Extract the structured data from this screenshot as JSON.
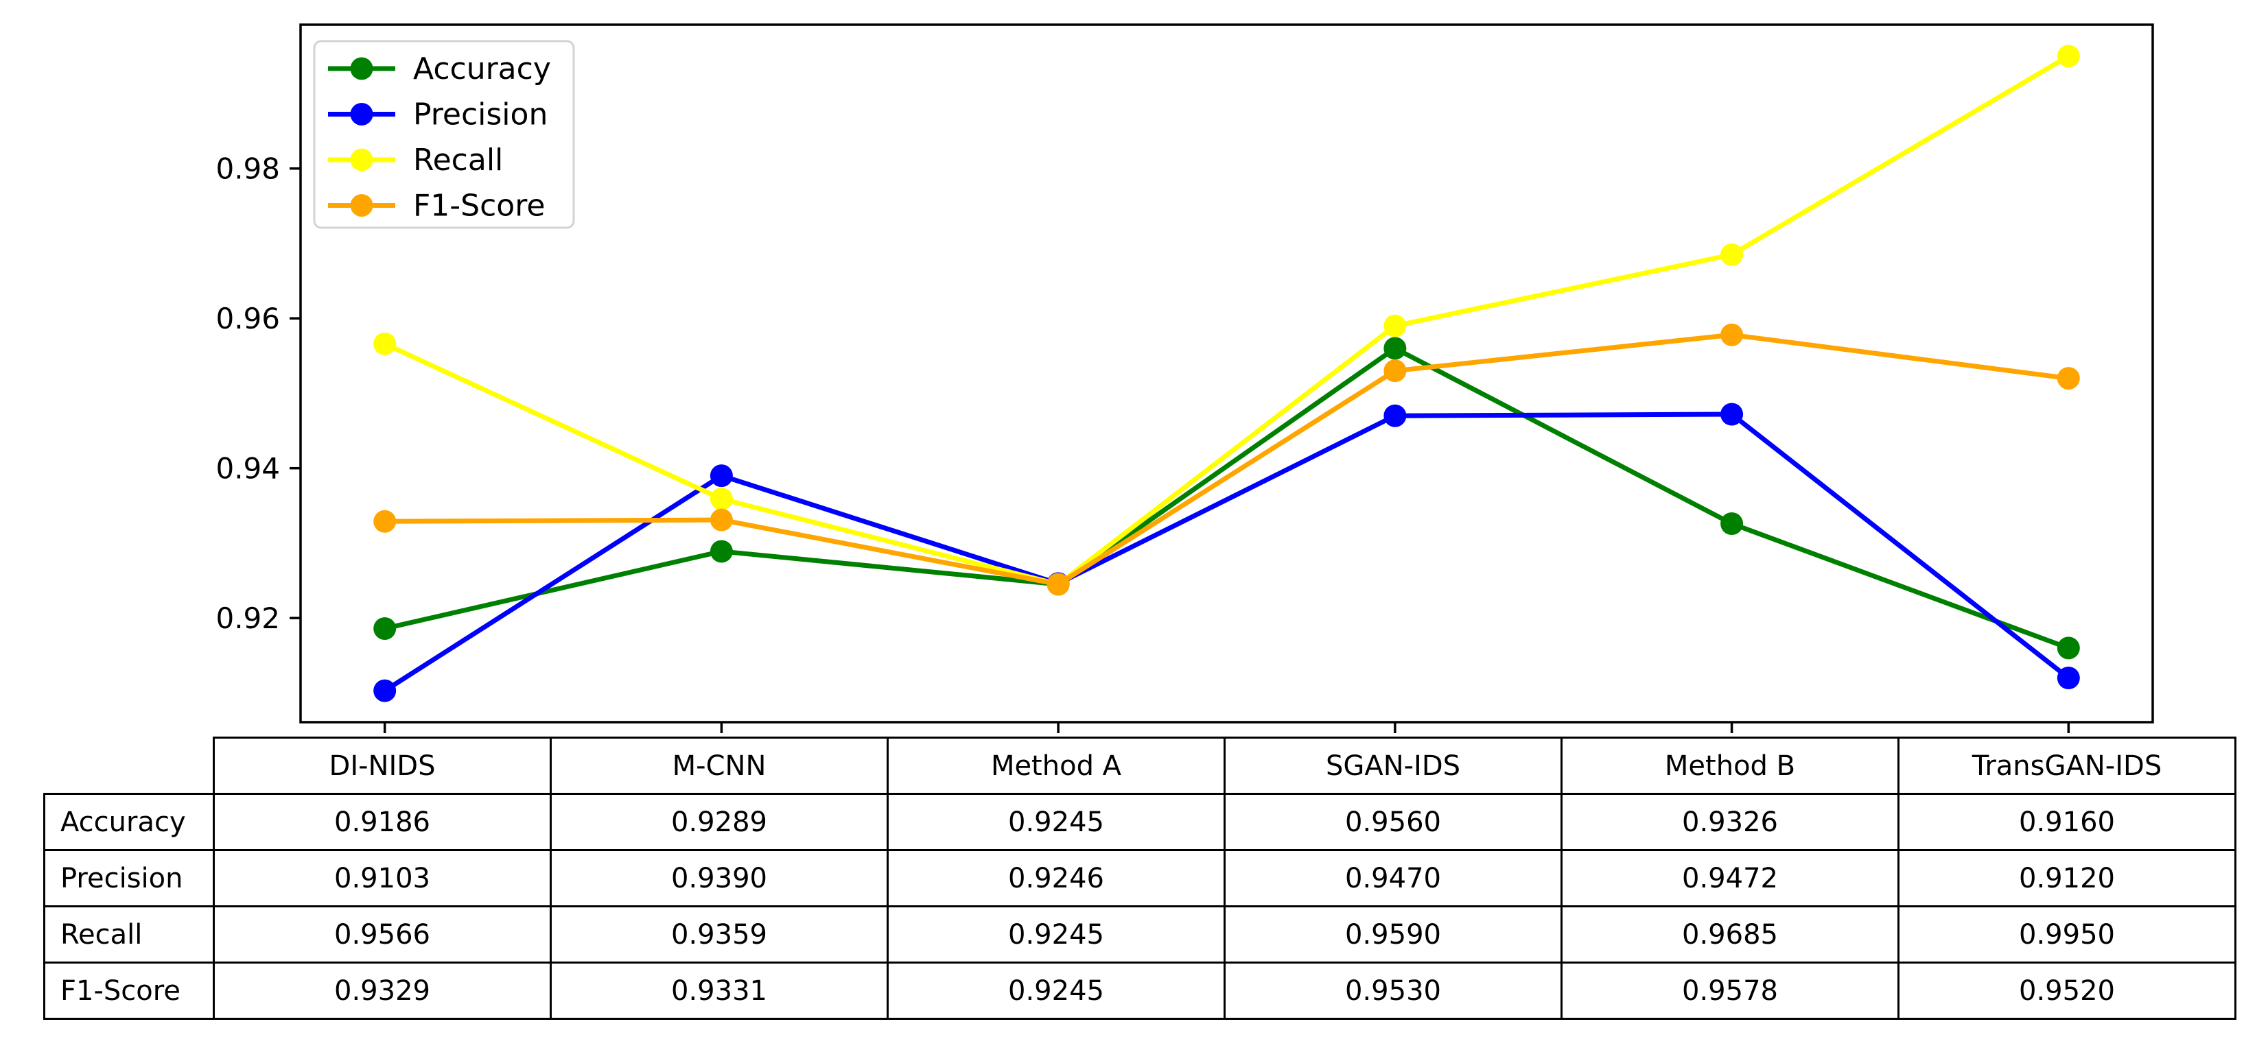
{
  "figure": {
    "background": "#ffffff"
  },
  "colors": {
    "accuracy": "#008000",
    "precision": "#0000ff",
    "recall": "#ffff00",
    "f1_score": "#ffa500",
    "axis": "#000000",
    "legend_border": "#d3d3d3",
    "table_border": "#000000"
  },
  "chart_data": {
    "type": "line",
    "title": "",
    "xlabel": "",
    "ylabel": "",
    "grid": false,
    "categories": [
      "DI-NIDS",
      "M-CNN",
      "Method A",
      "SGAN-IDS",
      "Method B",
      "TransGAN-IDS"
    ],
    "series": [
      {
        "name": "Accuracy",
        "color": "#008000",
        "values": [
          0.9186,
          0.9289,
          0.9245,
          0.956,
          0.9326,
          0.916
        ]
      },
      {
        "name": "Precision",
        "color": "#0000ff",
        "values": [
          0.9103,
          0.939,
          0.9246,
          0.947,
          0.9472,
          0.912
        ]
      },
      {
        "name": "Recall",
        "color": "#ffff00",
        "values": [
          0.9566,
          0.9359,
          0.9245,
          0.959,
          0.9685,
          0.995
        ]
      },
      {
        "name": "F1-Score",
        "color": "#ffa500",
        "values": [
          0.9329,
          0.9331,
          0.9245,
          0.953,
          0.9578,
          0.952
        ]
      }
    ],
    "yticks": [
      0.92,
      0.94,
      0.96,
      0.98
    ],
    "ytick_labels": [
      "0.92",
      "0.94",
      "0.96",
      "0.98"
    ],
    "ylim": [
      0.9061,
      0.9992
    ],
    "xlim": [
      -0.25,
      5.25
    ],
    "legend": {
      "position": "upper left",
      "entries": [
        "Accuracy",
        "Precision",
        "Recall",
        "F1-Score"
      ]
    }
  },
  "table": {
    "columns": [
      "DI-NIDS",
      "M-CNN",
      "Method A",
      "SGAN-IDS",
      "Method B",
      "TransGAN-IDS"
    ],
    "rows": [
      {
        "label": "Accuracy",
        "values": [
          "0.9186",
          "0.9289",
          "0.9245",
          "0.9560",
          "0.9326",
          "0.9160"
        ]
      },
      {
        "label": "Precision",
        "values": [
          "0.9103",
          "0.9390",
          "0.9246",
          "0.9470",
          "0.9472",
          "0.9120"
        ]
      },
      {
        "label": "Recall",
        "values": [
          "0.9566",
          "0.9359",
          "0.9245",
          "0.9590",
          "0.9685",
          "0.9950"
        ]
      },
      {
        "label": "F1-Score",
        "values": [
          "0.9329",
          "0.9331",
          "0.9245",
          "0.9530",
          "0.9578",
          "0.9520"
        ]
      }
    ]
  }
}
